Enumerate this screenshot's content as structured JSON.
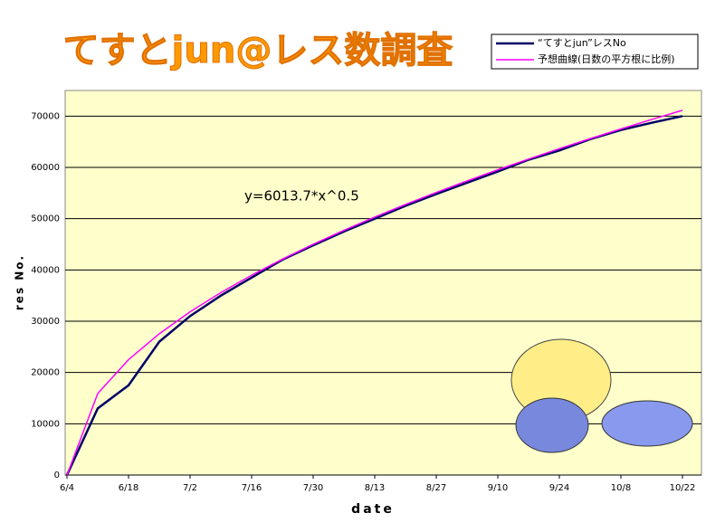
{
  "chart_data": {
    "type": "line",
    "title": "てすとjun@レス数調査",
    "annotation": "y=6013.7*x^0.5",
    "x_label": "date",
    "y_label": "res No.",
    "categories": [
      "6/4",
      null,
      "6/18",
      null,
      "7/2",
      null,
      "7/16",
      null,
      "7/30",
      null,
      "8/13",
      null,
      "8/27",
      null,
      "9/10",
      null,
      "9/24",
      null,
      "10/8",
      null,
      "10/22"
    ],
    "series": [
      {
        "name": "“てすとjun”レスNo",
        "color": "#000066",
        "values": [
          0,
          13000,
          17500,
          26000,
          31000,
          35000,
          38500,
          42000,
          44800,
          47500,
          50000,
          52500,
          54800,
          57000,
          59200,
          61500,
          63300,
          65500,
          67300,
          68700,
          70000
        ]
      },
      {
        "name": "予想曲線(日数の平方根に比例)",
        "color": "#ff00ff",
        "values": [
          0,
          15911,
          22502,
          27559,
          31822,
          35578,
          38974,
          42097,
          45004,
          47734,
          50315,
          52770,
          55117,
          57369,
          59536,
          61627,
          63647,
          65603,
          67500,
          69343,
          71136
        ]
      }
    ],
    "ylim": [
      0,
      75000
    ],
    "yticks": [
      0,
      10000,
      20000,
      30000,
      40000,
      50000,
      60000,
      70000
    ],
    "grid": true,
    "legend": "top-right",
    "background": "#ffffcc"
  }
}
